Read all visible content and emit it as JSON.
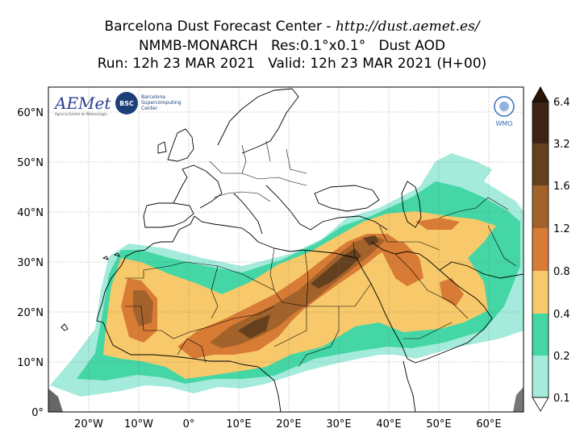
{
  "header": {
    "title_prefix": "Barcelona Dust Forecast Center - ",
    "title_url": "http://dust.aemet.es/",
    "subtitle": "NMMB-MONARCH   Res:0.1°x0.1°   Dust AOD",
    "run_line": "Run: 12h 23 MAR 2021   Valid: 12h 23 MAR 2021 (H+00)"
  },
  "logos": {
    "aemet": "AEMet",
    "aemet_sub": "Agencia Estatal de Meteorología",
    "bsc": "BSC",
    "bsc_text_1": "Barcelona",
    "bsc_text_2": "Supercomputing",
    "bsc_text_3": "Center",
    "wmo": "WMO"
  },
  "axes": {
    "lat_labels": [
      "60°N",
      "50°N",
      "40°N",
      "30°N",
      "20°N",
      "10°N",
      "0°"
    ],
    "lon_labels": [
      "20°W",
      "10°W",
      "0°",
      "10°E",
      "20°E",
      "30°E",
      "40°E",
      "50°E",
      "60°E"
    ]
  },
  "colorbar": {
    "labels": [
      "6.4",
      "3.2",
      "1.6",
      "1.2",
      "0.8",
      "0.4",
      "0.2",
      "0.1"
    ],
    "colors": [
      "#3d2313",
      "#64401f",
      "#a3622a",
      "#d77b35",
      "#f7c96a",
      "#44d6a4",
      "#a4ebdc"
    ]
  },
  "colors": {
    "c0": "#a4ebdc",
    "c1": "#44d6a4",
    "c2": "#f7c96a",
    "c3": "#d77b35",
    "c4": "#a3622a",
    "c5": "#64401f",
    "grid": "#777777"
  }
}
